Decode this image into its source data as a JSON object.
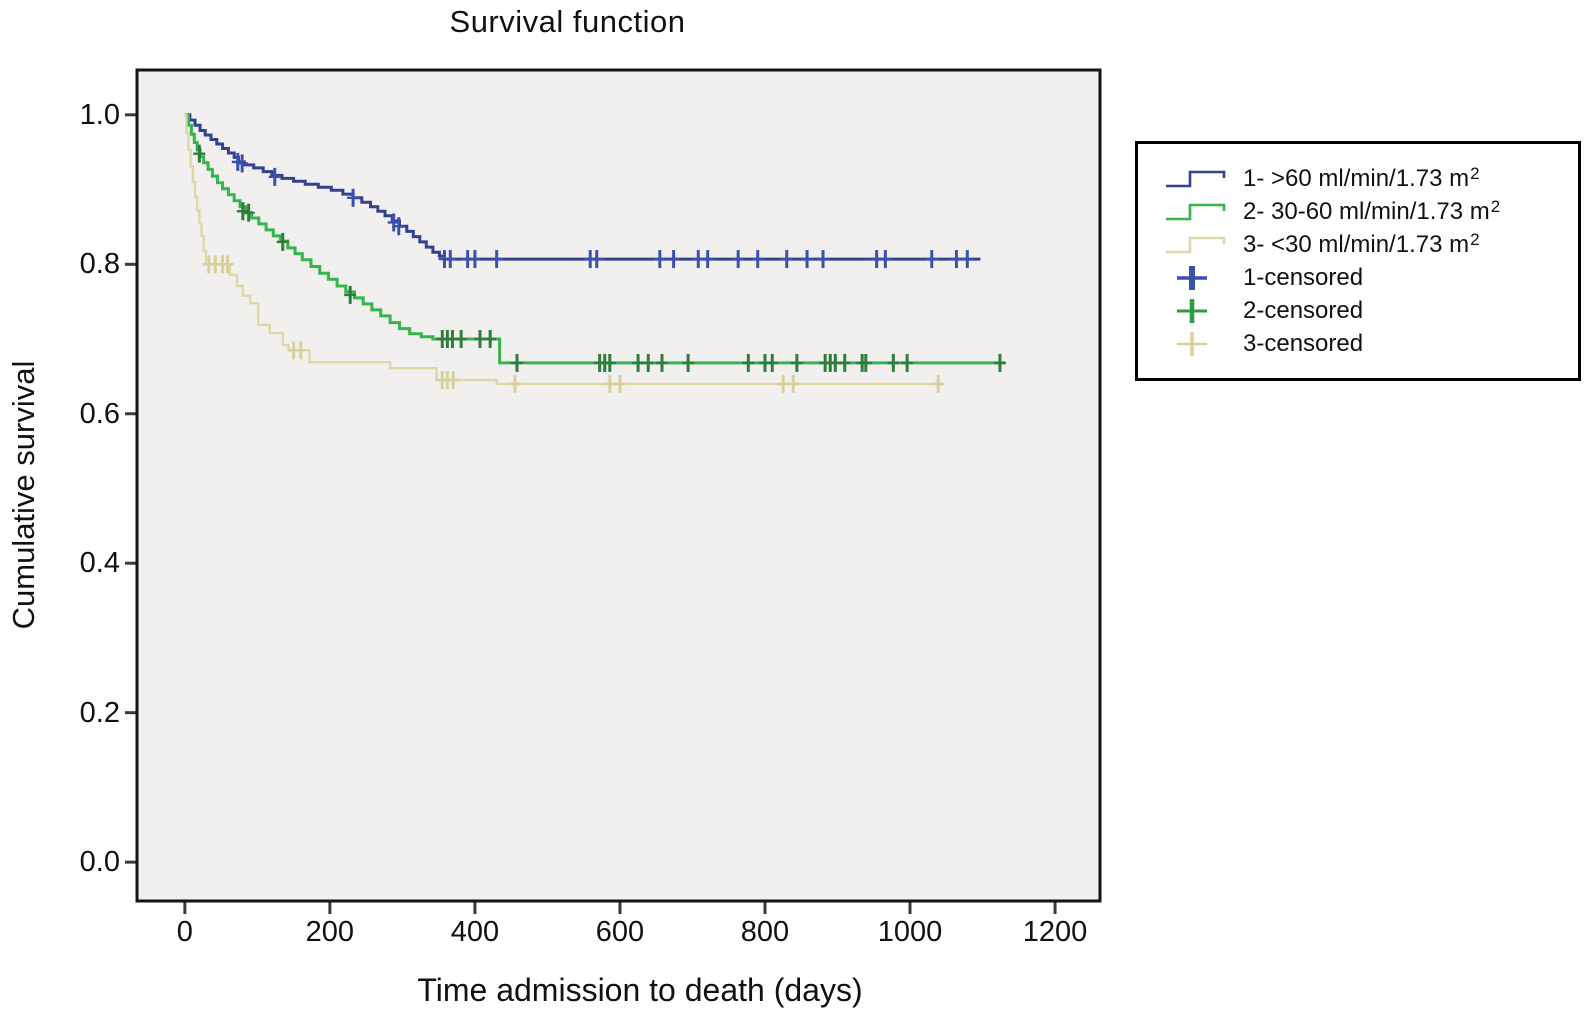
{
  "figure": {
    "title": "Survival function",
    "xlabel": "Time admission to death (days)",
    "ylabel": "Cumulative survival"
  },
  "chart_data": {
    "type": "line",
    "subtype": "kaplan_meier_step",
    "title": "Survival function",
    "xlabel": "Time admission to death (days)",
    "ylabel": "Cumulative survival",
    "grid": false,
    "legend_position": "right",
    "plot_bg": "#f1f0ee",
    "axis_color": "#141414",
    "tick_color": "#3a3a3a",
    "xlim": [
      -66,
      1262
    ],
    "ylim": [
      -0.052,
      1.06
    ],
    "x_ticks": [
      0,
      200,
      400,
      600,
      800,
      1000,
      1200
    ],
    "y_ticks": [
      0.0,
      0.2,
      0.4,
      0.6,
      0.8,
      1.0
    ],
    "series": [
      {
        "name": "1- >60 ml/min/1.73 m2",
        "color": "#33418f",
        "censor_color": "#3a4fae",
        "width": 3,
        "end_day": 1097,
        "steps": [
          [
            0,
            1.0
          ],
          [
            7,
            0.993
          ],
          [
            14,
            0.986
          ],
          [
            21,
            0.979
          ],
          [
            28,
            0.973
          ],
          [
            36,
            0.967
          ],
          [
            44,
            0.961
          ],
          [
            52,
            0.955
          ],
          [
            60,
            0.949
          ],
          [
            68,
            0.943
          ],
          [
            74,
            0.937
          ],
          [
            82,
            0.933
          ],
          [
            95,
            0.929
          ],
          [
            108,
            0.924
          ],
          [
            120,
            0.919
          ],
          [
            134,
            0.915
          ],
          [
            150,
            0.911
          ],
          [
            166,
            0.907
          ],
          [
            184,
            0.903
          ],
          [
            202,
            0.899
          ],
          [
            218,
            0.894
          ],
          [
            232,
            0.889
          ],
          [
            244,
            0.883
          ],
          [
            256,
            0.877
          ],
          [
            266,
            0.871
          ],
          [
            276,
            0.865
          ],
          [
            286,
            0.858
          ],
          [
            296,
            0.851
          ],
          [
            306,
            0.844
          ],
          [
            315,
            0.837
          ],
          [
            324,
            0.83
          ],
          [
            333,
            0.823
          ],
          [
            342,
            0.816
          ],
          [
            351,
            0.811
          ],
          [
            358,
            0.807
          ]
        ],
        "censored": [
          [
            73,
            0.937
          ],
          [
            79,
            0.935
          ],
          [
            124,
            0.917
          ],
          [
            232,
            0.889
          ],
          [
            288,
            0.856
          ],
          [
            295,
            0.851
          ],
          [
            358,
            0.807
          ],
          [
            366,
            0.807
          ],
          [
            390,
            0.807
          ],
          [
            400,
            0.807
          ],
          [
            430,
            0.807
          ],
          [
            559,
            0.807
          ],
          [
            568,
            0.807
          ],
          [
            655,
            0.807
          ],
          [
            674,
            0.807
          ],
          [
            708,
            0.807
          ],
          [
            721,
            0.807
          ],
          [
            763,
            0.807
          ],
          [
            790,
            0.807
          ],
          [
            830,
            0.807
          ],
          [
            858,
            0.807
          ],
          [
            880,
            0.807
          ],
          [
            954,
            0.807
          ],
          [
            966,
            0.807
          ],
          [
            1030,
            0.807
          ],
          [
            1064,
            0.807
          ],
          [
            1079,
            0.807
          ]
        ]
      },
      {
        "name": "2- 30-60 ml/min/1.73 m2",
        "color": "#36b44e",
        "censor_color": "#2e7d3c",
        "width": 3,
        "end_day": 1131,
        "steps": [
          [
            0,
            1.0
          ],
          [
            5,
            0.986
          ],
          [
            9,
            0.974
          ],
          [
            13,
            0.963
          ],
          [
            17,
            0.953
          ],
          [
            21,
            0.944
          ],
          [
            26,
            0.936
          ],
          [
            32,
            0.927
          ],
          [
            38,
            0.918
          ],
          [
            45,
            0.909
          ],
          [
            52,
            0.901
          ],
          [
            60,
            0.893
          ],
          [
            68,
            0.885
          ],
          [
            76,
            0.877
          ],
          [
            84,
            0.869
          ],
          [
            92,
            0.862
          ],
          [
            102,
            0.854
          ],
          [
            112,
            0.846
          ],
          [
            122,
            0.838
          ],
          [
            132,
            0.831
          ],
          [
            142,
            0.822
          ],
          [
            152,
            0.814
          ],
          [
            162,
            0.806
          ],
          [
            174,
            0.797
          ],
          [
            186,
            0.788
          ],
          [
            198,
            0.78
          ],
          [
            210,
            0.771
          ],
          [
            222,
            0.763
          ],
          [
            234,
            0.755
          ],
          [
            246,
            0.747
          ],
          [
            258,
            0.739
          ],
          [
            270,
            0.731
          ],
          [
            283,
            0.722
          ],
          [
            296,
            0.714
          ],
          [
            310,
            0.707
          ],
          [
            326,
            0.703
          ],
          [
            342,
            0.7
          ],
          [
            434,
            0.668
          ]
        ],
        "censored": [
          [
            20,
            0.948
          ],
          [
            80,
            0.871
          ],
          [
            88,
            0.869
          ],
          [
            135,
            0.83
          ],
          [
            228,
            0.759
          ],
          [
            355,
            0.7
          ],
          [
            362,
            0.7
          ],
          [
            369,
            0.7
          ],
          [
            381,
            0.7
          ],
          [
            407,
            0.7
          ],
          [
            421,
            0.7
          ],
          [
            458,
            0.668
          ],
          [
            572,
            0.668
          ],
          [
            579,
            0.668
          ],
          [
            586,
            0.668
          ],
          [
            625,
            0.668
          ],
          [
            639,
            0.668
          ],
          [
            658,
            0.668
          ],
          [
            694,
            0.668
          ],
          [
            777,
            0.668
          ],
          [
            800,
            0.668
          ],
          [
            810,
            0.668
          ],
          [
            844,
            0.668
          ],
          [
            883,
            0.668
          ],
          [
            890,
            0.668
          ],
          [
            897,
            0.668
          ],
          [
            910,
            0.668
          ],
          [
            934,
            0.668
          ],
          [
            939,
            0.668
          ],
          [
            977,
            0.668
          ],
          [
            996,
            0.668
          ],
          [
            1124,
            0.668
          ]
        ]
      },
      {
        "name": "3- <30 ml/min/1.73 m2",
        "color": "#ded7a8",
        "censor_color": "#d8d09b",
        "width": 2.4,
        "end_day": 1046,
        "steps": [
          [
            0,
            1.0
          ],
          [
            2,
            0.976
          ],
          [
            5,
            0.953
          ],
          [
            8,
            0.931
          ],
          [
            11,
            0.91
          ],
          [
            14,
            0.89
          ],
          [
            17,
            0.872
          ],
          [
            20,
            0.855
          ],
          [
            23,
            0.838
          ],
          [
            26,
            0.818
          ],
          [
            29,
            0.8
          ],
          [
            62,
            0.786
          ],
          [
            72,
            0.771
          ],
          [
            80,
            0.758
          ],
          [
            90,
            0.748
          ],
          [
            101,
            0.719
          ],
          [
            117,
            0.708
          ],
          [
            135,
            0.692
          ],
          [
            143,
            0.685
          ],
          [
            172,
            0.669
          ],
          [
            283,
            0.661
          ],
          [
            347,
            0.645
          ],
          [
            430,
            0.64
          ]
        ],
        "censored": [
          [
            33,
            0.8
          ],
          [
            42,
            0.8
          ],
          [
            52,
            0.8
          ],
          [
            59,
            0.8
          ],
          [
            150,
            0.685
          ],
          [
            160,
            0.685
          ],
          [
            355,
            0.645
          ],
          [
            362,
            0.645
          ],
          [
            370,
            0.645
          ],
          [
            455,
            0.64
          ],
          [
            586,
            0.64
          ],
          [
            600,
            0.64
          ],
          [
            825,
            0.64
          ],
          [
            839,
            0.64
          ],
          [
            1039,
            0.64
          ]
        ]
      }
    ]
  },
  "legend": {
    "items": [
      {
        "label": "1- >60 ml/min/1.73 m",
        "sup": "2",
        "type": "step-line",
        "color": "#33418f"
      },
      {
        "label": "2- 30-60 ml/min/1.73 m",
        "sup": "2",
        "type": "step-line",
        "color": "#36b44e"
      },
      {
        "label": "3- <30 ml/min/1.73 m",
        "sup": "2",
        "type": "step-line",
        "color": "#ded7a8"
      },
      {
        "label": "1-censored",
        "type": "plus",
        "color": "#3a4fae"
      },
      {
        "label": "2-censored",
        "type": "plus",
        "color": "#2e9a44"
      },
      {
        "label": "3-censored",
        "type": "plus",
        "color": "#d8d09b"
      }
    ]
  }
}
